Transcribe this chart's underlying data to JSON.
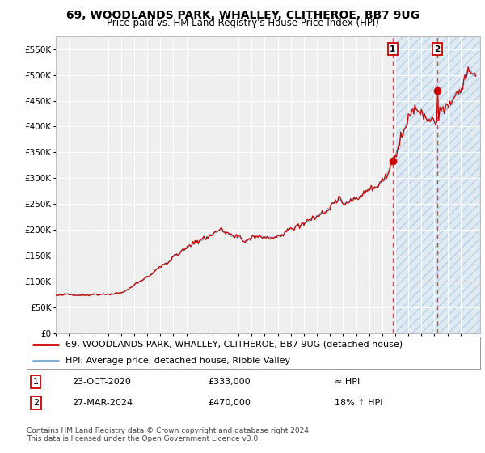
{
  "title": "69, WOODLANDS PARK, WHALLEY, CLITHEROE, BB7 9UG",
  "subtitle": "Price paid vs. HM Land Registry's House Price Index (HPI)",
  "ylim": [
    0,
    575000
  ],
  "yticks": [
    0,
    50000,
    100000,
    150000,
    200000,
    250000,
    300000,
    350000,
    400000,
    450000,
    500000,
    550000
  ],
  "ytick_labels": [
    "£0",
    "£50K",
    "£100K",
    "£150K",
    "£200K",
    "£250K",
    "£300K",
    "£350K",
    "£400K",
    "£450K",
    "£500K",
    "£550K"
  ],
  "xlim_start": 1995.0,
  "xlim_end": 2027.5,
  "xticks": [
    1995,
    1996,
    1997,
    1998,
    1999,
    2000,
    2001,
    2002,
    2003,
    2004,
    2005,
    2006,
    2007,
    2008,
    2009,
    2010,
    2011,
    2012,
    2013,
    2014,
    2015,
    2016,
    2017,
    2018,
    2019,
    2020,
    2021,
    2022,
    2023,
    2024,
    2025,
    2026,
    2027
  ],
  "background_color": "#ffffff",
  "plot_bg_color": "#efefef",
  "grid_color": "#ffffff",
  "line1_color": "#cc0000",
  "line2_color": "#7aadcf",
  "shade_color": "#dae8f5",
  "shade_hatch_color": "#b8d0e8",
  "shade_start": 2021.0,
  "shade_end": 2027.5,
  "vline1_x": 2020.81,
  "vline2_x": 2024.23,
  "marker1_y": 333000,
  "marker2_y": 470000,
  "legend_line1": "69, WOODLANDS PARK, WHALLEY, CLITHEROE, BB7 9UG (detached house)",
  "legend_line2": "HPI: Average price, detached house, Ribble Valley",
  "annotation1_num": "1",
  "annotation1_date": "23-OCT-2020",
  "annotation1_price": "£333,000",
  "annotation1_hpi": "≈ HPI",
  "annotation2_num": "2",
  "annotation2_date": "27-MAR-2024",
  "annotation2_price": "£470,000",
  "annotation2_hpi": "18% ↑ HPI",
  "footer": "Contains HM Land Registry data © Crown copyright and database right 2024.\nThis data is licensed under the Open Government Licence v3.0.",
  "title_fontsize": 10,
  "subtitle_fontsize": 8.5,
  "tick_fontsize": 7.5,
  "legend_fontsize": 8,
  "annotation_fontsize": 8,
  "footer_fontsize": 6.5
}
